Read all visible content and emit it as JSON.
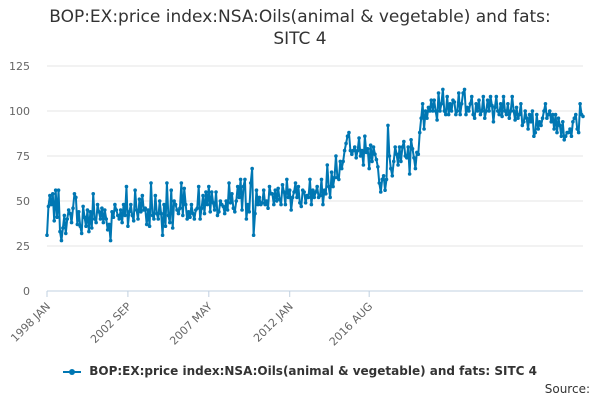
{
  "chart_data": {
    "type": "line",
    "title_line1": "BOP:EX:price index:NSA:Oils(animal & vegetable) and fats:",
    "title_line2": "SITC 4",
    "x_start": "1998 JAN",
    "x_end": "2016 AUG",
    "x_ticks": [
      "1998 JAN",
      "2002 SEP",
      "2007 MAY",
      "2012 JAN",
      "2016 AUG"
    ],
    "y_ticks": [
      0,
      25,
      50,
      75,
      100,
      125
    ],
    "ylim": [
      0,
      125
    ],
    "grid": true,
    "legend_position": "bottom",
    "series": [
      {
        "name": "BOP:EX:price index:NSA:Oils(animal & vegetable) and fats: SITC 4",
        "color": "#0077b3",
        "values": [
          31,
          47,
          53,
          48,
          54,
          39,
          56,
          41,
          56,
          33,
          28,
          35,
          42,
          32,
          40,
          45,
          43,
          38,
          46,
          54,
          52,
          37,
          44,
          36,
          32,
          47,
          41,
          36,
          45,
          33,
          44,
          35,
          54,
          40,
          38,
          48,
          44,
          40,
          46,
          38,
          45,
          40,
          34,
          37,
          28,
          44,
          41,
          48,
          45,
          42,
          40,
          45,
          38,
          48,
          42,
          58,
          36,
          44,
          48,
          42,
          39,
          56,
          45,
          40,
          51,
          44,
          53,
          45,
          46,
          37,
          45,
          36,
          60,
          42,
          40,
          53,
          43,
          40,
          50,
          43,
          31,
          48,
          36,
          60,
          42,
          38,
          56,
          35,
          50,
          48,
          45,
          43,
          46,
          60,
          42,
          57,
          48,
          40,
          44,
          41,
          48,
          43,
          40,
          45,
          46,
          58,
          40,
          46,
          53,
          43,
          55,
          48,
          58,
          44,
          55,
          49,
          45,
          55,
          42,
          44,
          50,
          48,
          47,
          43,
          50,
          45,
          60,
          49,
          54,
          46,
          44,
          50,
          58,
          52,
          62,
          45,
          58,
          62,
          40,
          48,
          44,
          60,
          68,
          31,
          43,
          56,
          48,
          52,
          48,
          49,
          56,
          48,
          50,
          46,
          58,
          54,
          54,
          48,
          56,
          50,
          57,
          51,
          48,
          59,
          55,
          48,
          62,
          52,
          56,
          45,
          52,
          55,
          60,
          52,
          58,
          49,
          47,
          56,
          55,
          49,
          53,
          52,
          62,
          48,
          56,
          52,
          55,
          58,
          52,
          53,
          62,
          48,
          56,
          54,
          70,
          58,
          52,
          66,
          58,
          63,
          75,
          63,
          62,
          72,
          68,
          72,
          78,
          82,
          86,
          88,
          78,
          76,
          78,
          80,
          74,
          78,
          85,
          75,
          78,
          70,
          86,
          77,
          79,
          68,
          81,
          72,
          80,
          76,
          73,
          69,
          60,
          55,
          62,
          64,
          56,
          62,
          92,
          75,
          68,
          64,
          72,
          80,
          76,
          70,
          80,
          72,
          80,
          83,
          75,
          74,
          80,
          65,
          84,
          79,
          74,
          68,
          77,
          76,
          88,
          96,
          104,
          90,
          100,
          96,
          102,
          100,
          106,
          100,
          106,
          100,
          95,
          110,
          100,
          104,
          112,
          100,
          98,
          108,
          98,
          104,
          100,
          106,
          105,
          98,
          100,
          110,
          98,
          104,
          110,
          112,
          98,
          102,
          100,
          104,
          108,
          98,
          96,
          104,
          100,
          106,
          98,
          100,
          108,
          96,
          100,
          106,
          100,
          108,
          103,
          94,
          102,
          108,
          100,
          98,
          104,
          97,
          108,
          100,
          98,
          104,
          96,
          100,
          108,
          100,
          95,
          102,
          96,
          98,
          104,
          92,
          94,
          100,
          96,
          90,
          98,
          94,
          100,
          86,
          88,
          98,
          90,
          94,
          92,
          96,
          100,
          104,
          96,
          98,
          100,
          94,
          98,
          90,
          98,
          88,
          96,
          92,
          86,
          94,
          84,
          86,
          88,
          88,
          90,
          86,
          94,
          96,
          98,
          90,
          88,
          104,
          98,
          97
        ]
      }
    ],
    "source_label": "Source:"
  }
}
